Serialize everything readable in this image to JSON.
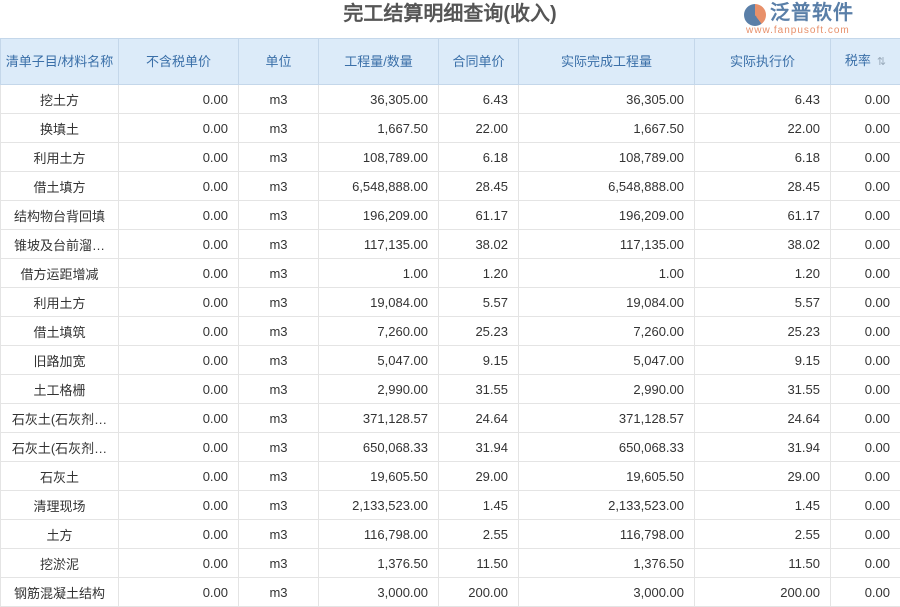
{
  "title": "完工结算明细查询(收入)",
  "columns": [
    "清单子目/材料名称",
    "不含税单价",
    "单位",
    "工程量/数量",
    "合同单价",
    "实际完成工程量",
    "实际执行价",
    "税率"
  ],
  "rows": [
    [
      "挖土方",
      "0.00",
      "m3",
      "36,305.00",
      "6.43",
      "36,305.00",
      "6.43",
      "0.00"
    ],
    [
      "换填土",
      "0.00",
      "m3",
      "1,667.50",
      "22.00",
      "1,667.50",
      "22.00",
      "0.00"
    ],
    [
      "利用土方",
      "0.00",
      "m3",
      "108,789.00",
      "6.18",
      "108,789.00",
      "6.18",
      "0.00"
    ],
    [
      "借土填方",
      "0.00",
      "m3",
      "6,548,888.00",
      "28.45",
      "6,548,888.00",
      "28.45",
      "0.00"
    ],
    [
      "结构物台背回填",
      "0.00",
      "m3",
      "196,209.00",
      "61.17",
      "196,209.00",
      "61.17",
      "0.00"
    ],
    [
      "锥坡及台前溜…",
      "0.00",
      "m3",
      "117,135.00",
      "38.02",
      "117,135.00",
      "38.02",
      "0.00"
    ],
    [
      "借方运距增减",
      "0.00",
      "m3",
      "1.00",
      "1.20",
      "1.00",
      "1.20",
      "0.00"
    ],
    [
      "利用土方",
      "0.00",
      "m3",
      "19,084.00",
      "5.57",
      "19,084.00",
      "5.57",
      "0.00"
    ],
    [
      "借土填筑",
      "0.00",
      "m3",
      "7,260.00",
      "25.23",
      "7,260.00",
      "25.23",
      "0.00"
    ],
    [
      "旧路加宽",
      "0.00",
      "m3",
      "5,047.00",
      "9.15",
      "5,047.00",
      "9.15",
      "0.00"
    ],
    [
      "土工格栅",
      "0.00",
      "m3",
      "2,990.00",
      "31.55",
      "2,990.00",
      "31.55",
      "0.00"
    ],
    [
      "石灰土(石灰剂…",
      "0.00",
      "m3",
      "371,128.57",
      "24.64",
      "371,128.57",
      "24.64",
      "0.00"
    ],
    [
      "石灰土(石灰剂…",
      "0.00",
      "m3",
      "650,068.33",
      "31.94",
      "650,068.33",
      "31.94",
      "0.00"
    ],
    [
      "石灰土",
      "0.00",
      "m3",
      "19,605.50",
      "29.00",
      "19,605.50",
      "29.00",
      "0.00"
    ],
    [
      "清理现场",
      "0.00",
      "m3",
      "2,133,523.00",
      "1.45",
      "2,133,523.00",
      "1.45",
      "0.00"
    ],
    [
      "土方",
      "0.00",
      "m3",
      "116,798.00",
      "2.55",
      "116,798.00",
      "2.55",
      "0.00"
    ],
    [
      "挖淤泥",
      "0.00",
      "m3",
      "1,376.50",
      "11.50",
      "1,376.50",
      "11.50",
      "0.00"
    ],
    [
      "钢筋混凝土结构",
      "0.00",
      "m3",
      "3,000.00",
      "200.00",
      "3,000.00",
      "200.00",
      "0.00"
    ]
  ],
  "watermark": {
    "name": "泛普软件",
    "url": "www.fanpusoft.com"
  }
}
